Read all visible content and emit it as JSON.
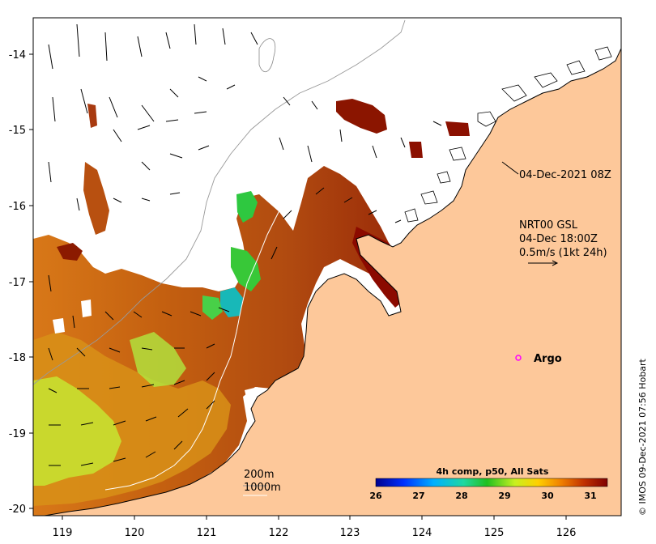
{
  "map": {
    "lon_ticks": [
      "119",
      "120",
      "121",
      "122",
      "123",
      "124",
      "125",
      "126"
    ],
    "lat_ticks": [
      "-14",
      "-15",
      "-16",
      "-17",
      "-18",
      "-19",
      "-20"
    ],
    "annotations": {
      "timestamp_label": "04-Dec-2021 08Z",
      "current_source": "NRT00 GSL",
      "current_time": "04-Dec 18:00Z",
      "vector_scale": "0.5m/s (1kt 24h)",
      "argo_label": "Argo"
    },
    "isobaths": {
      "label_200": "200m",
      "label_1000": "1000m"
    },
    "colorbar": {
      "title": "4h comp, p50, All Sats",
      "ticks": [
        "26",
        "27",
        "28",
        "29",
        "30",
        "31"
      ]
    },
    "credit": "© IMOS 09-Dec-2021 07:56 Hobart",
    "colors": {
      "land": "#fdc89a",
      "coast": "#000000",
      "sst_warm": "#b84a10",
      "sst_hot": "#8b0a00",
      "sst_mid": "#e09a10",
      "sst_cool": "#b8e838",
      "sst_green": "#2ec840",
      "sst_cyan": "#10c0c0",
      "argo": "#ff00ff"
    }
  }
}
